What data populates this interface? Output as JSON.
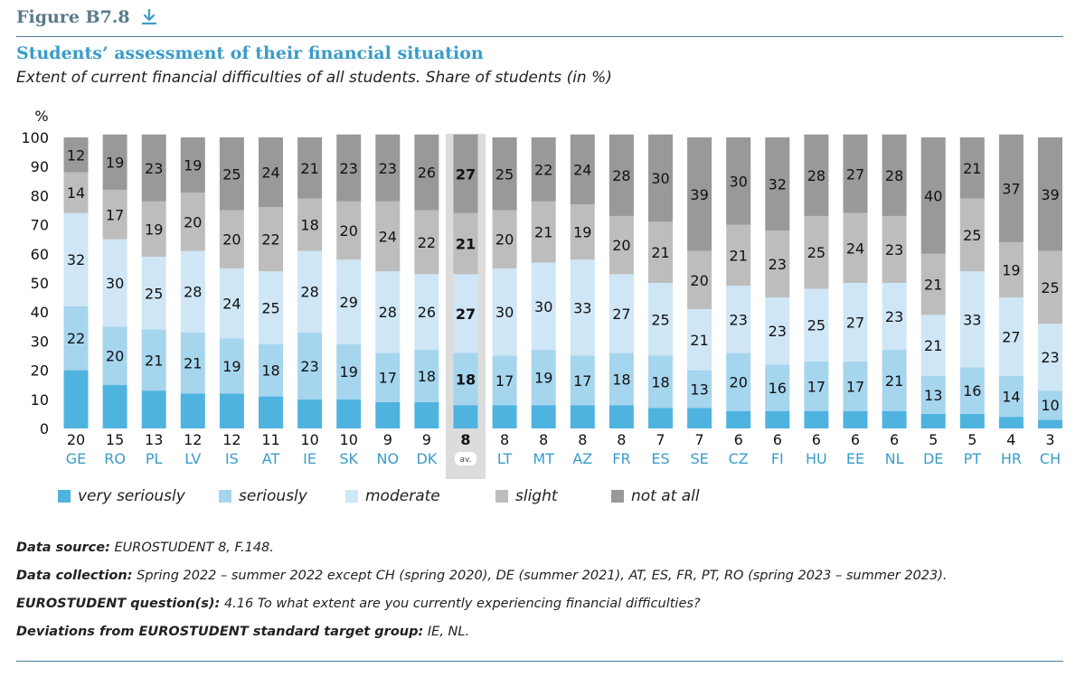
{
  "figure": {
    "label": "Figure B7.8",
    "download_icon": "download-arrow-icon"
  },
  "title": "Students’ assessment of their financial situation",
  "subtitle": "Extent of current financial difficulties of all students. Share of students (in %)",
  "colors": {
    "very_seriously": "#4fb3e0",
    "seriously": "#a6d5ee",
    "moderate": "#cfe6f6",
    "slight": "#bdbdbd",
    "not_at_all": "#999999",
    "country_label": "#3a9cc9",
    "rule": "#4d7b95",
    "average_highlight": "#dcdcdc"
  },
  "chart_data": {
    "type": "bar",
    "stacked": true,
    "ylabel": "%",
    "ylim": [
      0,
      100
    ],
    "yticks": [
      0,
      10,
      20,
      30,
      40,
      50,
      60,
      70,
      80,
      90,
      100
    ],
    "grid": false,
    "legend_position": "bottom",
    "categories": [
      "GE",
      "RO",
      "PL",
      "LV",
      "IS",
      "AT",
      "IE",
      "SK",
      "NO",
      "DK",
      "",
      "LT",
      "MT",
      "AZ",
      "FR",
      "ES",
      "SE",
      "CZ",
      "FI",
      "HU",
      "EE",
      "NL",
      "DE",
      "PT",
      "HR",
      "CH"
    ],
    "average_label": "av.",
    "average_index": 10,
    "series": [
      {
        "name": "very seriously",
        "values": [
          20,
          15,
          13,
          12,
          12,
          11,
          10,
          10,
          9,
          9,
          8,
          8,
          8,
          8,
          8,
          7,
          7,
          6,
          6,
          6,
          6,
          6,
          5,
          5,
          4,
          3
        ]
      },
      {
        "name": "seriously",
        "values": [
          22,
          20,
          21,
          21,
          19,
          18,
          23,
          19,
          17,
          18,
          18,
          17,
          19,
          17,
          18,
          18,
          13,
          20,
          16,
          17,
          17,
          21,
          13,
          16,
          14,
          10
        ]
      },
      {
        "name": "moderate",
        "values": [
          32,
          30,
          25,
          28,
          24,
          25,
          28,
          29,
          28,
          26,
          27,
          30,
          30,
          33,
          27,
          25,
          21,
          23,
          23,
          25,
          27,
          23,
          21,
          33,
          27,
          23
        ]
      },
      {
        "name": "slight",
        "values": [
          14,
          17,
          19,
          20,
          20,
          22,
          18,
          20,
          24,
          22,
          21,
          20,
          21,
          19,
          20,
          21,
          20,
          21,
          23,
          25,
          24,
          23,
          21,
          25,
          19,
          25
        ]
      },
      {
        "name": "not at all",
        "values": [
          12,
          19,
          23,
          19,
          25,
          24,
          21,
          23,
          23,
          26,
          27,
          25,
          22,
          24,
          28,
          30,
          39,
          30,
          32,
          28,
          27,
          28,
          40,
          21,
          37,
          39
        ]
      }
    ]
  },
  "legend": [
    {
      "key": "very_seriously",
      "label": "very seriously"
    },
    {
      "key": "seriously",
      "label": "seriously"
    },
    {
      "key": "moderate",
      "label": "moderate"
    },
    {
      "key": "slight",
      "label": "slight"
    },
    {
      "key": "not_at_all",
      "label": "not at all"
    }
  ],
  "notes": {
    "source_label": "Data source:",
    "source_text": " EUROSTUDENT 8, F.148.",
    "collection_label": "Data collection:",
    "collection_text": " Spring 2022 – summer 2022 except CH (spring 2020), DE (summer 2021), AT, ES, FR, PT, RO (spring 2023 – summer 2023).",
    "question_label": "EUROSTUDENT question(s):",
    "question_text": " 4.16 To what extent are you currently experiencing financial difficulties?",
    "deviations_label": "Deviations from EUROSTUDENT standard target group:",
    "deviations_text": " IE, NL."
  }
}
